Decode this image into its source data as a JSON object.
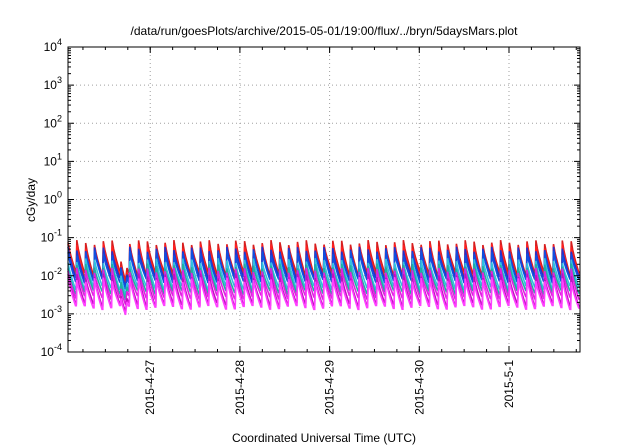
{
  "chart_data": {
    "type": "line",
    "title": "/data/run/goesPlots/archive/2015-05-01/19:00/flux/../bryn/5daysMars.plot",
    "xlabel": "Coordinated Universal Time (UTC)",
    "ylabel": "cGy/day",
    "yscale": "log",
    "ylim": [
      0.0001,
      10000
    ],
    "xlim": [
      "2015-04-26T02:00",
      "2015-05-01T19:00"
    ],
    "grid": true,
    "legend": "none",
    "y_ticks": [
      {
        "base": "10",
        "exp": "-4"
      },
      {
        "base": "10",
        "exp": "-3"
      },
      {
        "base": "10",
        "exp": "-2"
      },
      {
        "base": "10",
        "exp": "-1"
      },
      {
        "base": "10",
        "exp": "0"
      },
      {
        "base": "10",
        "exp": "1"
      },
      {
        "base": "10",
        "exp": "2"
      },
      {
        "base": "10",
        "exp": "3"
      },
      {
        "base": "10",
        "exp": "4"
      }
    ],
    "x_ticks": [
      {
        "label": "2015-4-27",
        "date": "2015-04-27T00:00"
      },
      {
        "label": "2015-4-28",
        "date": "2015-04-28T00:00"
      },
      {
        "label": "2015-4-29",
        "date": "2015-04-29T00:00"
      },
      {
        "label": "2015-4-30",
        "date": "2015-04-30T00:00"
      },
      {
        "label": "2015-5-1",
        "date": "2015-05-01T00:00"
      }
    ],
    "pattern": {
      "tooth_count": 58,
      "dip_start": "2015-04-26T16:00",
      "dip_end": "2015-04-26T17:30"
    },
    "series": [
      {
        "color": "#d81e1e",
        "peak": 0.075,
        "trough": 0.012
      },
      {
        "color": "#ff2020",
        "peak": 0.06,
        "trough": 0.01
      },
      {
        "color": "#2233cc",
        "peak": 0.05,
        "trough": 0.009
      },
      {
        "color": "#1050e0",
        "peak": 0.04,
        "trough": 0.0075
      },
      {
        "color": "#30c0e0",
        "peak": 0.025,
        "trough": 0.005
      },
      {
        "color": "#20b0a0",
        "peak": 0.018,
        "trough": 0.0038
      },
      {
        "color": "#e020e0",
        "peak": 0.014,
        "trough": 0.0028
      },
      {
        "color": "#c010c0",
        "peak": 0.01,
        "trough": 0.0018
      },
      {
        "color": "#ff40ff",
        "peak": 0.008,
        "trough": 0.0015
      }
    ]
  }
}
